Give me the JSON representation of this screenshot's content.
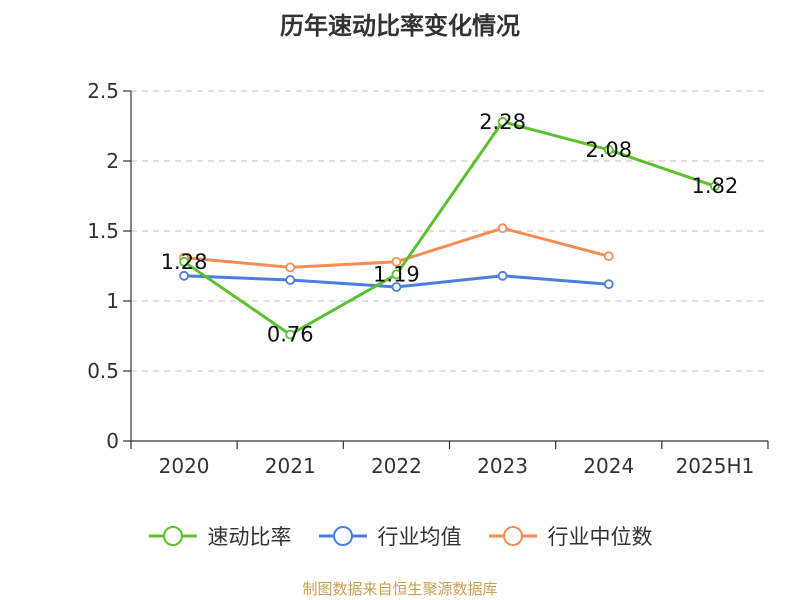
{
  "chart_data": {
    "type": "line",
    "title": "历年速动比率变化情况",
    "categories": [
      "2020",
      "2021",
      "2022",
      "2023",
      "2024",
      "2025H1"
    ],
    "ylim": [
      0,
      2.5
    ],
    "yticks": [
      "0",
      "0.5",
      "1",
      "1.5",
      "2",
      "2.5"
    ],
    "grid": "horizontal dashed",
    "legend_position": "bottom",
    "series": [
      {
        "name": "速动比率",
        "color": "#5cc12f",
        "values": [
          1.28,
          0.76,
          1.19,
          2.28,
          2.08,
          1.82
        ],
        "labels": [
          "1.28",
          "0.76",
          "1.19",
          "2.28",
          "2.08",
          "1.82"
        ],
        "show_labels": true
      },
      {
        "name": "行业均值",
        "color": "#4a7fe0",
        "values": [
          1.18,
          1.15,
          1.1,
          1.18,
          1.12,
          null
        ],
        "show_labels": false
      },
      {
        "name": "行业中位数",
        "color": "#f58d55",
        "values": [
          1.31,
          1.24,
          1.28,
          1.52,
          1.32,
          null
        ],
        "show_labels": false
      }
    ]
  },
  "source_text": "制图数据来自恒生聚源数据库"
}
